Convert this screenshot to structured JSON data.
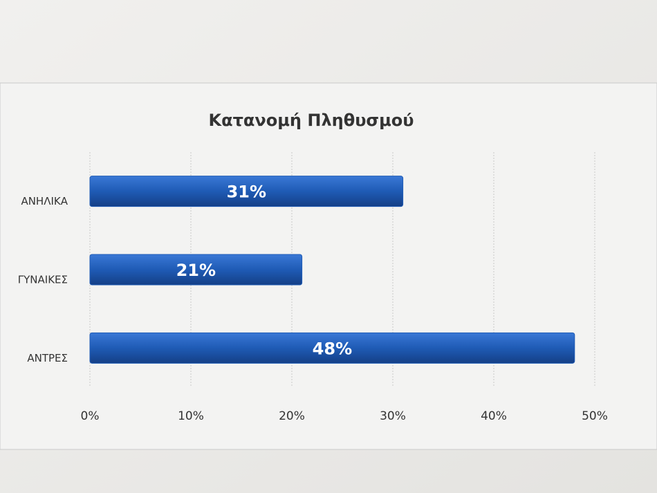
{
  "chart_data": {
    "type": "bar",
    "orientation": "horizontal",
    "title": "Κατανομή Πληθυσμού",
    "categories": [
      "ΑΝΗΛΙΚΑ",
      "ΓΥΝΑΙΚΕΣ",
      "ΑΝΤΡΕΣ"
    ],
    "values": [
      31,
      21,
      48
    ],
    "value_labels": [
      "31%",
      "21%",
      "48%"
    ],
    "color": "#1f5bb5",
    "xlim": [
      0,
      50
    ],
    "xticks": [
      {
        "value": 0,
        "label": "0%"
      },
      {
        "value": 10,
        "label": "10%"
      },
      {
        "value": 20,
        "label": "20%"
      },
      {
        "value": 30,
        "label": "30%"
      },
      {
        "value": 40,
        "label": "40%"
      },
      {
        "value": 50,
        "label": "50%"
      }
    ],
    "grid": true
  }
}
